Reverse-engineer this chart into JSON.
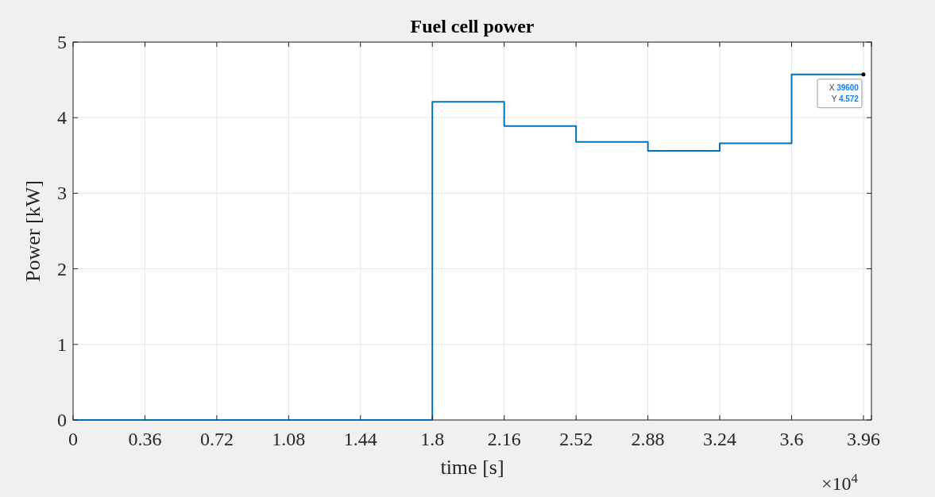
{
  "chart_data": {
    "type": "step",
    "title": "Fuel cell power",
    "xlabel": "time [s]",
    "ylabel": "Power [kW]",
    "x": [
      0,
      1.8,
      2.16,
      2.52,
      2.88,
      3.24,
      3.6,
      3.96
    ],
    "series": [
      {
        "color": "#0072bd",
        "values": [
          0,
          4.21,
          3.89,
          3.68,
          3.56,
          3.66,
          4.572,
          4.572
        ]
      }
    ],
    "xlim": [
      0,
      4
    ],
    "xticks": [
      0,
      0.36,
      0.72,
      1.08,
      1.44,
      1.8,
      2.16,
      2.52,
      2.88,
      3.24,
      3.6,
      3.96,
      {
        "value": 4,
        "label": null
      }
    ],
    "ylim": [
      0,
      5
    ],
    "yticks": [
      0,
      1,
      2,
      3,
      4,
      5
    ],
    "grid": true,
    "marker": "none",
    "line_style": "solid",
    "annotations": [
      {
        "text": "X 39600\nY 4.572",
        "x": 3.96,
        "y": 4.572
      },
      "×10$^{4}$"
    ]
  }
}
